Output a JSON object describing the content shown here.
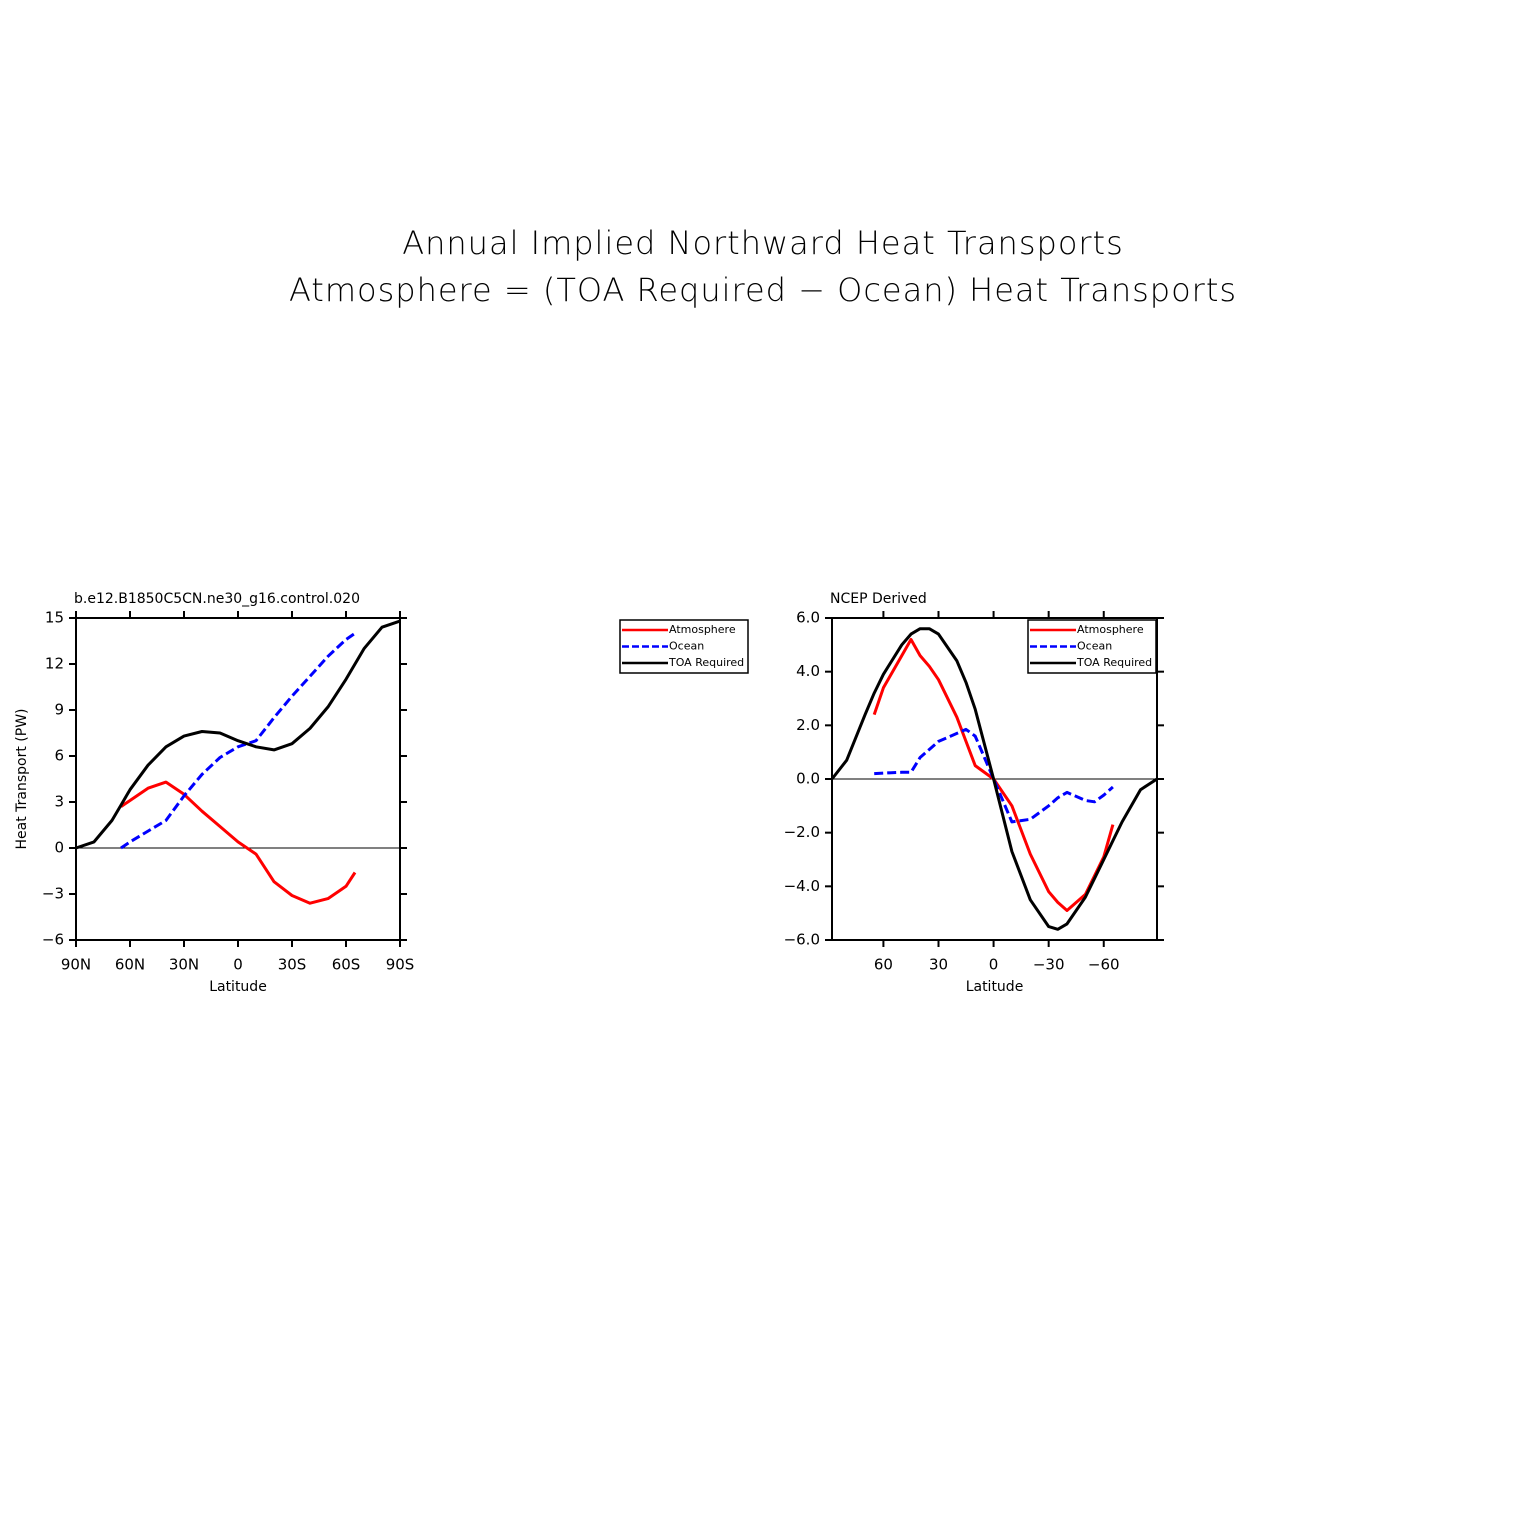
{
  "title": "Annual Implied Northward Heat Transports",
  "subtitle": "Atmosphere = (TOA Required − Ocean) Heat Transports",
  "chart_data": [
    {
      "type": "line",
      "title": "b.e12.B1850C5CN.ne30_g16.control.020",
      "xlabel": "Latitude",
      "ylabel": "Heat Transport (PW)",
      "x": [
        90,
        80,
        70,
        65,
        60,
        50,
        40,
        30,
        20,
        10,
        0,
        -10,
        -20,
        -30,
        -40,
        -50,
        -60,
        -65,
        -70,
        -80,
        -90
      ],
      "series": [
        {
          "name": "Atmosphere",
          "color": "#ff0000",
          "dash": false,
          "values": [
            null,
            null,
            null,
            2.7,
            3.1,
            3.9,
            4.3,
            3.5,
            2.4,
            1.4,
            0.4,
            -0.4,
            -2.2,
            -3.1,
            -3.6,
            -3.3,
            -2.5,
            -1.6,
            null,
            null,
            null
          ]
        },
        {
          "name": "Ocean",
          "color": "#0000ff",
          "dash": true,
          "values": [
            null,
            null,
            null,
            0,
            0.4,
            1.1,
            1.8,
            3.4,
            4.8,
            5.9,
            6.6,
            7.0,
            8.5,
            9.9,
            11.2,
            12.5,
            13.6,
            14.0,
            null,
            null,
            null
          ]
        },
        {
          "name": "TOA Required",
          "color": "#000000",
          "dash": false,
          "values": [
            0,
            0.4,
            1.8,
            2.8,
            3.8,
            5.4,
            6.6,
            7.3,
            7.6,
            7.5,
            7.0,
            6.6,
            6.4,
            6.8,
            7.8,
            9.2,
            11.0,
            12.0,
            13.0,
            14.4,
            14.8
          ]
        }
      ],
      "xlim": [
        90,
        -90
      ],
      "xticks": [
        {
          "value": 90,
          "label": "90N"
        },
        {
          "value": 60,
          "label": "60N"
        },
        {
          "value": 30,
          "label": "30N"
        },
        0,
        {
          "value": -30,
          "label": "30S"
        },
        {
          "value": -60,
          "label": "60S"
        },
        {
          "value": -90,
          "label": "90S"
        }
      ],
      "ylim": [
        -6,
        15
      ],
      "yticks": [
        {
          "value": -6,
          "label": "−6"
        },
        {
          "value": -3,
          "label": "−3"
        },
        0,
        3,
        6,
        9,
        12,
        15
      ],
      "legend": "outside right"
    },
    {
      "type": "line",
      "title": "NCEP Derived",
      "xlabel": "Latitude",
      "x": [
        88,
        80,
        70,
        65,
        60,
        50,
        45,
        40,
        35,
        30,
        20,
        15,
        10,
        0,
        -10,
        -20,
        -30,
        -35,
        -40,
        -50,
        -55,
        -60,
        -65,
        -70,
        -80,
        -89
      ],
      "series": [
        {
          "name": "Atmosphere",
          "color": "#ff0000",
          "dash": false,
          "values": [
            null,
            null,
            null,
            2.4,
            3.4,
            4.6,
            5.2,
            4.6,
            4.2,
            3.7,
            2.3,
            1.4,
            0.5,
            0,
            -1.0,
            -2.8,
            -4.2,
            -4.6,
            -4.9,
            -4.3,
            -3.6,
            -2.9,
            -1.7,
            null,
            null,
            null
          ]
        },
        {
          "name": "Ocean",
          "color": "#0000ff",
          "dash": true,
          "values": [
            null,
            null,
            null,
            0.2,
            0.22,
            0.25,
            0.25,
            0.8,
            1.1,
            1.4,
            1.7,
            1.85,
            1.6,
            0,
            -1.6,
            -1.5,
            -1.0,
            -0.7,
            -0.5,
            -0.8,
            -0.85,
            -0.6,
            -0.3,
            null,
            null,
            null
          ]
        },
        {
          "name": "TOA Required",
          "color": "#000000",
          "dash": false,
          "values": [
            0,
            0.7,
            2.4,
            3.2,
            3.9,
            5.0,
            5.4,
            5.6,
            5.6,
            5.4,
            4.4,
            3.6,
            2.6,
            0,
            -2.7,
            -4.5,
            -5.5,
            -5.6,
            -5.4,
            -4.4,
            -3.7,
            -3.0,
            -2.3,
            -1.6,
            -0.4,
            0
          ]
        }
      ],
      "xlim": [
        88,
        -89
      ],
      "xticks": [
        60,
        30,
        0,
        {
          "value": -30,
          "label": "−30"
        },
        {
          "value": -60,
          "label": "−60"
        }
      ],
      "ylim": [
        -6,
        6
      ],
      "yticks": [
        {
          "value": -6,
          "label": "−6.0"
        },
        {
          "value": -4,
          "label": "−4.0"
        },
        {
          "value": -2,
          "label": "−2.0"
        },
        {
          "value": 0,
          "label": "0.0"
        },
        {
          "value": 2,
          "label": "2.0"
        },
        {
          "value": 4,
          "label": "4.0"
        },
        {
          "value": 6,
          "label": "6.0"
        }
      ],
      "legend": "upper right"
    }
  ]
}
